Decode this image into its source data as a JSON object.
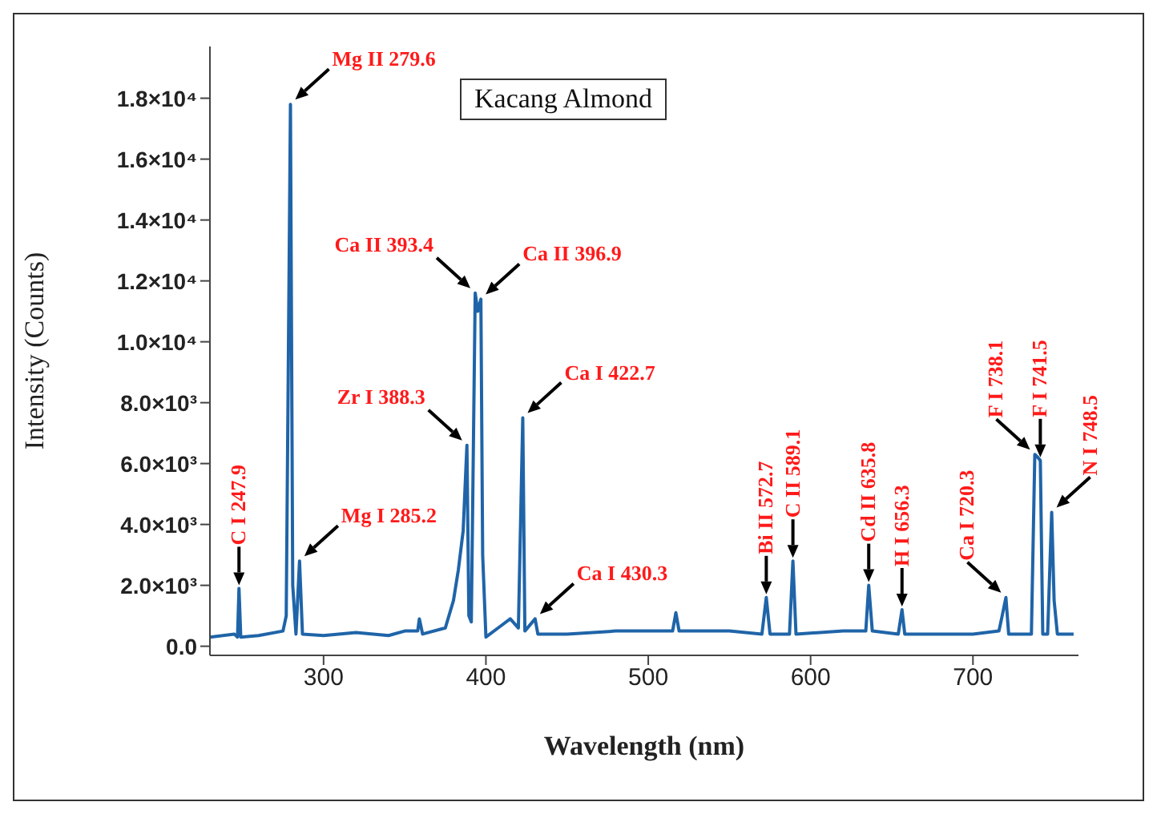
{
  "chart_data": {
    "type": "line",
    "title": "Kacang Almond",
    "xlabel": "Wavelength (nm)",
    "ylabel": "Intensity (Counts)",
    "x": [
      230,
      245,
      247,
      247.9,
      249,
      260,
      275,
      277,
      279.6,
      281,
      283,
      285.2,
      287,
      300,
      320,
      340,
      350,
      358,
      359,
      361,
      375,
      380,
      383,
      386,
      388.3,
      389.5,
      391,
      393.4,
      395,
      396.9,
      398,
      400,
      410,
      415,
      420,
      422.7,
      424,
      430.3,
      432,
      450,
      480,
      515,
      517,
      519,
      550,
      570,
      572.7,
      575,
      587,
      589.1,
      591,
      620,
      634,
      635.8,
      638,
      654,
      656.3,
      658,
      700,
      716,
      718,
      720.3,
      722,
      736,
      738.1,
      740,
      741.5,
      743,
      746,
      748.5,
      750,
      752,
      762
    ],
    "series": [
      {
        "color": "#1f64a8",
        "values": [
          300,
          400,
          300,
          1900,
          300,
          350,
          500,
          1000,
          17800,
          2000,
          400,
          2800,
          400,
          350,
          450,
          350,
          500,
          500,
          900,
          400,
          600,
          1500,
          2500,
          3800,
          6600,
          1000,
          800,
          11600,
          11000,
          11400,
          3000,
          300,
          700,
          900,
          600,
          7500,
          500,
          900,
          400,
          400,
          500,
          500,
          1100,
          500,
          500,
          400,
          1600,
          400,
          400,
          2800,
          400,
          500,
          500,
          2000,
          500,
          400,
          1200,
          400,
          400,
          500,
          1000,
          1600,
          400,
          400,
          6300,
          6200,
          6100,
          400,
          400,
          4400,
          1500,
          400,
          400
        ]
      }
    ],
    "xlim": [
      230,
      765
    ],
    "xticks": [
      300,
      400,
      500,
      600,
      700
    ],
    "ylim": [
      -300,
      19700
    ],
    "yticks": [
      {
        "value": 0,
        "label": "0.0"
      },
      {
        "value": 2000,
        "label": "2.0×10³"
      },
      {
        "value": 4000,
        "label": "4.0×10³"
      },
      {
        "value": 6000,
        "label": "6.0×10³"
      },
      {
        "value": 8000,
        "label": "8.0×10³"
      },
      {
        "value": 10000,
        "label": "1.0×10⁴"
      },
      {
        "value": 12000,
        "label": "1.2×10⁴"
      },
      {
        "value": 14000,
        "label": "1.4×10⁴"
      },
      {
        "value": 16000,
        "label": "1.6×10⁴"
      },
      {
        "value": 18000,
        "label": "1.8×10⁴"
      }
    ],
    "grid": false,
    "legend": false,
    "marker": "none",
    "line_style": "solid",
    "annotations": [
      {
        "text": "C I 247.9",
        "x": 247.9,
        "y": 1900
      },
      {
        "text": "Mg II 279.6",
        "x": 279.6,
        "y": 17800
      },
      {
        "text": "Mg I 285.2",
        "x": 285.2,
        "y": 2800
      },
      {
        "text": "Zr I 388.3",
        "x": 388.3,
        "y": 6600
      },
      {
        "text": "Ca II 393.4",
        "x": 393.4,
        "y": 11600
      },
      {
        "text": "Ca II 396.9",
        "x": 396.9,
        "y": 11400
      },
      {
        "text": "Ca I 422.7",
        "x": 422.7,
        "y": 7500
      },
      {
        "text": "Ca I 430.3",
        "x": 430.3,
        "y": 900
      },
      {
        "text": "Bi II 572.7",
        "x": 572.7,
        "y": 1600
      },
      {
        "text": "C II 589.1",
        "x": 589.1,
        "y": 2800
      },
      {
        "text": "Cd II 635.8",
        "x": 635.8,
        "y": 2000
      },
      {
        "text": "H I 656.3",
        "x": 656.3,
        "y": 1200
      },
      {
        "text": "Ca I 720.3",
        "x": 720.3,
        "y": 1600
      },
      {
        "text": "F I 738.1",
        "x": 738.1,
        "y": 6300
      },
      {
        "text": "F I 741.5",
        "x": 741.5,
        "y": 6100
      },
      {
        "text": "N I 748.5",
        "x": 748.5,
        "y": 4400
      }
    ]
  }
}
